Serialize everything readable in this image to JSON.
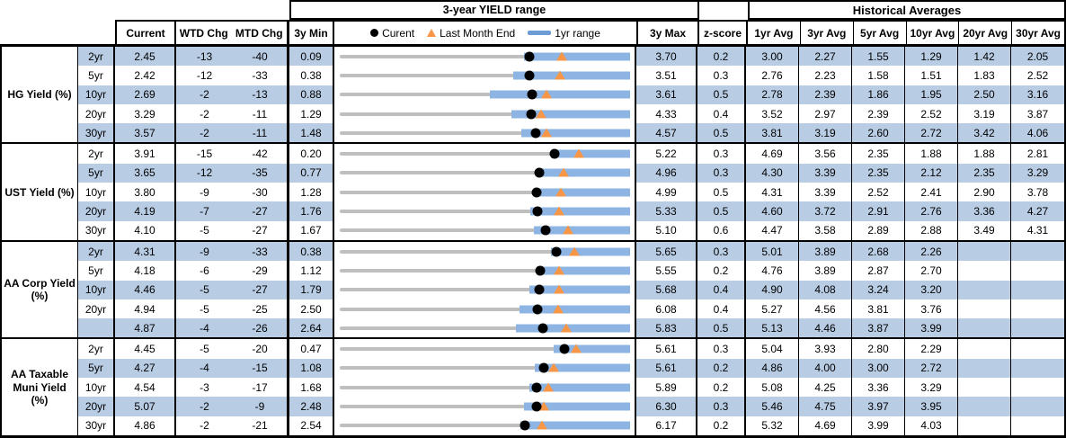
{
  "header": {
    "top": {
      "yield_range_title": "3-year YIELD range",
      "historical_averages_title": "Historical Averages"
    },
    "columns": {
      "current": "Current",
      "wtd": "WTD Chg",
      "mtd": "MTD Chg",
      "min3y": "3y Min",
      "max3y": "3y Max",
      "zscore": "z-score",
      "avg_columns": [
        "1yr Avg",
        "3yr Avg",
        "5yr Avg",
        "10yr Avg",
        "20yr Avg",
        "30yr Avg"
      ]
    },
    "legend": {
      "current": "Curent",
      "last_month_end": "Last Month End",
      "range_1yr": "1yr range"
    }
  },
  "colors": {
    "stripe_blue": "#B8CCE4",
    "bar_blue": "#8DB4E2",
    "legend_bar_blue": "#6D9DD4",
    "track_gray": "#BFBFBF",
    "marker_orange": "#F79646",
    "dot_black": "#000000"
  },
  "chart_data": {
    "type": "table",
    "title": "3-year YIELD range",
    "note": "Each row is a bullet chart spanning 3y Min to 3y Max; gray track = 3y range, blue bar = 1yr range, black dot = current yield, orange triangle = last month end. last_month_end and range1yr_low are read from marker/bar positions.",
    "groups": [
      {
        "label": "HG Yield (%)",
        "rows": [
          {
            "tenor": "2yr",
            "current": "2.45",
            "wtd_chg": "-13",
            "mtd_chg": "-40",
            "min_3y": "0.09",
            "max_3y": "3.70",
            "zscore": "0.2",
            "avgs": [
              "3.00",
              "2.27",
              "1.55",
              "1.29",
              "1.42",
              "2.05"
            ],
            "last_month_end": 2.85,
            "range1yr_low": 2.38,
            "range1yr_high": 3.7
          },
          {
            "tenor": "5yr",
            "current": "2.42",
            "wtd_chg": "-12",
            "mtd_chg": "-33",
            "min_3y": "0.38",
            "max_3y": "3.51",
            "zscore": "0.3",
            "avgs": [
              "2.76",
              "2.23",
              "1.58",
              "1.51",
              "1.83",
              "2.52"
            ],
            "last_month_end": 2.75,
            "range1yr_low": 2.25,
            "range1yr_high": 3.51
          },
          {
            "tenor": "10yr",
            "current": "2.69",
            "wtd_chg": "-2",
            "mtd_chg": "-13",
            "min_3y": "0.88",
            "max_3y": "3.61",
            "zscore": "0.5",
            "avgs": [
              "2.78",
              "2.39",
              "1.86",
              "1.95",
              "2.50",
              "3.16"
            ],
            "last_month_end": 2.82,
            "range1yr_low": 2.29,
            "range1yr_high": 3.61
          },
          {
            "tenor": "20yr",
            "current": "3.29",
            "wtd_chg": "-2",
            "mtd_chg": "-11",
            "min_3y": "1.29",
            "max_3y": "4.33",
            "zscore": "0.4",
            "avgs": [
              "3.52",
              "2.97",
              "2.39",
              "2.52",
              "3.19",
              "3.87"
            ],
            "last_month_end": 3.4,
            "range1yr_low": 3.09,
            "range1yr_high": 4.33
          },
          {
            "tenor": "30yr",
            "current": "3.57",
            "wtd_chg": "-2",
            "mtd_chg": "-11",
            "min_3y": "1.48",
            "max_3y": "4.57",
            "zscore": "0.5",
            "avgs": [
              "3.81",
              "3.19",
              "2.60",
              "2.72",
              "3.42",
              "4.06"
            ],
            "last_month_end": 3.68,
            "range1yr_low": 3.41,
            "range1yr_high": 4.57
          }
        ]
      },
      {
        "label": "UST Yield (%)",
        "rows": [
          {
            "tenor": "2yr",
            "current": "3.91",
            "wtd_chg": "-15",
            "mtd_chg": "-42",
            "min_3y": "0.20",
            "max_3y": "5.22",
            "zscore": "0.3",
            "avgs": [
              "4.69",
              "3.56",
              "2.35",
              "1.88",
              "1.88",
              "2.81"
            ],
            "last_month_end": 4.33,
            "range1yr_low": 3.86,
            "range1yr_high": 5.22
          },
          {
            "tenor": "5yr",
            "current": "3.65",
            "wtd_chg": "-12",
            "mtd_chg": "-35",
            "min_3y": "0.77",
            "max_3y": "4.96",
            "zscore": "0.3",
            "avgs": [
              "4.30",
              "3.39",
              "2.35",
              "2.12",
              "2.35",
              "3.29"
            ],
            "last_month_end": 4.0,
            "range1yr_low": 3.63,
            "range1yr_high": 4.96
          },
          {
            "tenor": "10yr",
            "current": "3.80",
            "wtd_chg": "-9",
            "mtd_chg": "-30",
            "min_3y": "1.28",
            "max_3y": "4.99",
            "zscore": "0.5",
            "avgs": [
              "4.31",
              "3.39",
              "2.52",
              "2.41",
              "2.90",
              "3.78"
            ],
            "last_month_end": 4.1,
            "range1yr_low": 3.78,
            "range1yr_high": 4.99
          },
          {
            "tenor": "20yr",
            "current": "4.19",
            "wtd_chg": "-7",
            "mtd_chg": "-27",
            "min_3y": "1.76",
            "max_3y": "5.33",
            "zscore": "0.5",
            "avgs": [
              "4.60",
              "3.72",
              "2.91",
              "2.76",
              "3.36",
              "4.27"
            ],
            "last_month_end": 4.46,
            "range1yr_low": 4.1,
            "range1yr_high": 5.33
          },
          {
            "tenor": "30yr",
            "current": "4.10",
            "wtd_chg": "-5",
            "mtd_chg": "-27",
            "min_3y": "1.67",
            "max_3y": "5.10",
            "zscore": "0.6",
            "avgs": [
              "4.47",
              "3.58",
              "2.89",
              "2.88",
              "3.49",
              "4.31"
            ],
            "last_month_end": 4.37,
            "range1yr_low": 3.96,
            "range1yr_high": 5.1
          }
        ]
      },
      {
        "label": "AA Corp Yield (%)",
        "rows": [
          {
            "tenor": "2yr",
            "current": "4.31",
            "wtd_chg": "-9",
            "mtd_chg": "-33",
            "min_3y": "0.38",
            "max_3y": "5.65",
            "zscore": "0.3",
            "avgs": [
              "5.01",
              "3.89",
              "2.68",
              "2.26",
              "",
              ""
            ],
            "last_month_end": 4.64,
            "range1yr_low": 4.22,
            "range1yr_high": 5.65
          },
          {
            "tenor": "5yr",
            "current": "4.18",
            "wtd_chg": "-6",
            "mtd_chg": "-29",
            "min_3y": "1.12",
            "max_3y": "5.55",
            "zscore": "0.2",
            "avgs": [
              "4.76",
              "3.89",
              "2.87",
              "2.70",
              "",
              ""
            ],
            "last_month_end": 4.47,
            "range1yr_low": 4.12,
            "range1yr_high": 5.55
          },
          {
            "tenor": "10yr",
            "current": "4.46",
            "wtd_chg": "-5",
            "mtd_chg": "-27",
            "min_3y": "1.79",
            "max_3y": "5.68",
            "zscore": "0.4",
            "avgs": [
              "4.90",
              "4.08",
              "3.24",
              "3.20",
              "",
              ""
            ],
            "last_month_end": 4.73,
            "range1yr_low": 4.33,
            "range1yr_high": 5.68
          },
          {
            "tenor": "20yr",
            "current": "4.94",
            "wtd_chg": "-5",
            "mtd_chg": "-25",
            "min_3y": "2.50",
            "max_3y": "6.08",
            "zscore": "0.4",
            "avgs": [
              "5.27",
              "4.56",
              "3.81",
              "3.76",
              "",
              ""
            ],
            "last_month_end": 5.19,
            "range1yr_low": 4.72,
            "range1yr_high": 6.08
          },
          {
            "tenor": "",
            "current": "4.87",
            "wtd_chg": "-4",
            "mtd_chg": "-26",
            "min_3y": "2.64",
            "max_3y": "5.83",
            "zscore": "0.5",
            "avgs": [
              "5.13",
              "4.46",
              "3.87",
              "3.99",
              "",
              ""
            ],
            "last_month_end": 5.13,
            "range1yr_low": 4.58,
            "range1yr_high": 5.83
          }
        ]
      },
      {
        "label": "AA Taxable Muni Yield (%)",
        "rows": [
          {
            "tenor": "2yr",
            "current": "4.45",
            "wtd_chg": "-5",
            "mtd_chg": "-20",
            "min_3y": "0.47",
            "max_3y": "5.61",
            "zscore": "0.3",
            "avgs": [
              "5.04",
              "3.93",
              "2.80",
              "2.29",
              "",
              ""
            ],
            "last_month_end": 4.65,
            "range1yr_low": 4.26,
            "range1yr_high": 5.61
          },
          {
            "tenor": "5yr",
            "current": "4.27",
            "wtd_chg": "-4",
            "mtd_chg": "-15",
            "min_3y": "1.08",
            "max_3y": "5.61",
            "zscore": "0.2",
            "avgs": [
              "4.86",
              "4.00",
              "3.00",
              "2.72",
              "",
              ""
            ],
            "last_month_end": 4.42,
            "range1yr_low": 4.13,
            "range1yr_high": 5.61
          },
          {
            "tenor": "10yr",
            "current": "4.54",
            "wtd_chg": "-3",
            "mtd_chg": "-17",
            "min_3y": "1.68",
            "max_3y": "5.89",
            "zscore": "0.2",
            "avgs": [
              "5.08",
              "4.25",
              "3.36",
              "3.29",
              "",
              ""
            ],
            "last_month_end": 4.71,
            "range1yr_low": 4.43,
            "range1yr_high": 5.89
          },
          {
            "tenor": "20yr",
            "current": "5.07",
            "wtd_chg": "-2",
            "mtd_chg": "-9",
            "min_3y": "2.48",
            "max_3y": "6.30",
            "zscore": "0.3",
            "avgs": [
              "5.46",
              "4.75",
              "3.97",
              "3.95",
              "",
              ""
            ],
            "last_month_end": 5.16,
            "range1yr_low": 4.91,
            "range1yr_high": 6.3
          },
          {
            "tenor": "30yr",
            "current": "4.86",
            "wtd_chg": "-2",
            "mtd_chg": "-21",
            "min_3y": "2.54",
            "max_3y": "6.17",
            "zscore": "0.2",
            "avgs": [
              "5.32",
              "4.69",
              "3.99",
              "4.03",
              "",
              ""
            ],
            "last_month_end": 5.07,
            "range1yr_low": 4.8,
            "range1yr_high": 6.17
          }
        ]
      }
    ]
  }
}
